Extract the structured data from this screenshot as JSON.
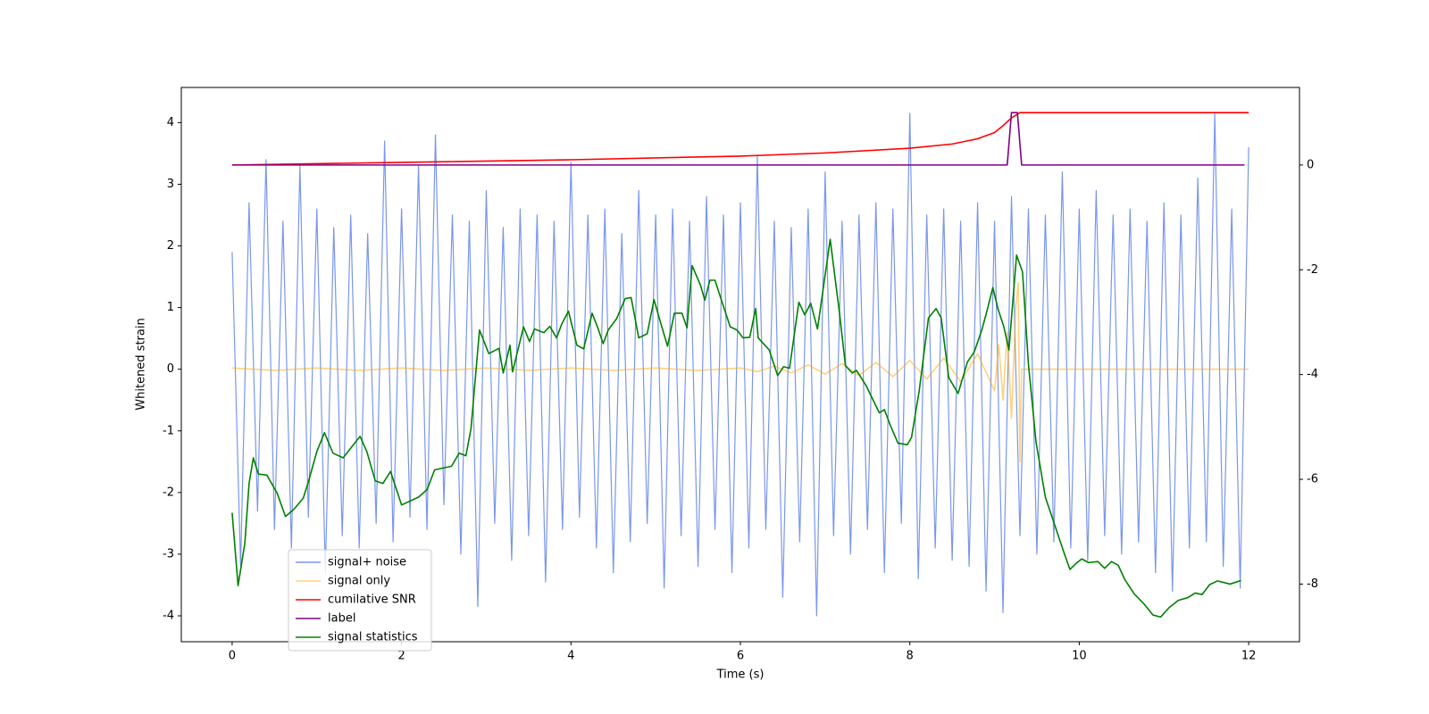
{
  "chart_data": {
    "type": "line",
    "xlabel": "Time (s)",
    "ylabel": "Whitened strain",
    "xlim": [
      -0.6,
      12.6
    ],
    "xticks": [
      0,
      2,
      4,
      6,
      8,
      10,
      12
    ],
    "ylim": [
      -4.42,
      4.57
    ],
    "yticks": [
      -4,
      -3,
      -2,
      -1,
      0,
      1,
      2,
      3,
      4
    ],
    "y2lim": [
      -9.1,
      1.48
    ],
    "y2ticks": [
      -8,
      -6,
      -4,
      -2,
      0
    ],
    "legend_loc": "lower left",
    "series": [
      {
        "name": "signal+ noise",
        "color": "#4169e1",
        "alpha": 0.7,
        "axis": "y",
        "x": [
          0,
          0.1,
          0.2,
          0.3,
          0.4,
          0.5,
          0.6,
          0.7,
          0.8,
          0.9,
          1,
          1.1,
          1.2,
          1.3,
          1.4,
          1.5,
          1.6,
          1.7,
          1.8,
          1.9,
          2,
          2.1,
          2.2,
          2.3,
          2.4,
          2.5,
          2.6,
          2.7,
          2.8,
          2.9,
          3,
          3.1,
          3.2,
          3.3,
          3.4,
          3.5,
          3.6,
          3.7,
          3.8,
          3.9,
          4,
          4.1,
          4.2,
          4.3,
          4.4,
          4.5,
          4.6,
          4.7,
          4.8,
          4.9,
          5,
          5.1,
          5.2,
          5.3,
          5.4,
          5.5,
          5.6,
          5.7,
          5.8,
          5.9,
          6,
          6.1,
          6.2,
          6.3,
          6.4,
          6.5,
          6.6,
          6.7,
          6.8,
          6.9,
          7,
          7.1,
          7.2,
          7.3,
          7.4,
          7.5,
          7.6,
          7.7,
          7.8,
          7.9,
          8,
          8.1,
          8.2,
          8.3,
          8.4,
          8.5,
          8.6,
          8.7,
          8.8,
          8.9,
          9,
          9.1,
          9.2,
          9.3,
          9.4,
          9.5,
          9.6,
          9.7,
          9.8,
          9.9,
          10,
          10.1,
          10.2,
          10.3,
          10.4,
          10.5,
          10.6,
          10.7,
          10.8,
          10.9,
          11,
          11.1,
          11.2,
          11.3,
          11.4,
          11.5,
          11.6,
          11.7,
          11.8,
          11.9,
          12
        ],
        "values": [
          1.9,
          -3.2,
          2.7,
          -2.3,
          3.4,
          -2.6,
          2.4,
          -2.9,
          3.3,
          -2.4,
          2.6,
          -3.3,
          2.3,
          -2.7,
          2.5,
          -2.9,
          2.2,
          -2.5,
          3.7,
          -2.8,
          2.6,
          -2.4,
          3.3,
          -2.6,
          3.8,
          -2.2,
          2.5,
          -3.0,
          2.4,
          -3.85,
          2.9,
          -2.5,
          2.3,
          -3.1,
          2.6,
          -2.7,
          2.5,
          -3.45,
          2.4,
          -2.6,
          3.35,
          -2.4,
          2.5,
          -2.9,
          2.6,
          -3.3,
          2.2,
          -2.8,
          2.9,
          -2.5,
          2.5,
          -3.55,
          2.6,
          -2.7,
          2.4,
          -3.2,
          2.8,
          -2.6,
          2.5,
          -3.3,
          2.7,
          -2.9,
          3.45,
          -2.6,
          2.4,
          -3.7,
          2.3,
          -2.8,
          2.6,
          -4.0,
          3.2,
          -2.7,
          2.4,
          -3.0,
          2.5,
          -2.6,
          2.7,
          -3.3,
          2.6,
          -2.5,
          4.15,
          -3.4,
          2.5,
          -2.9,
          2.6,
          -3.1,
          2.4,
          -3.2,
          2.7,
          -3.6,
          2.4,
          -3.95,
          2.8,
          -2.7,
          2.6,
          -3.0,
          2.5,
          -2.8,
          3.2,
          -2.9,
          2.6,
          -3.1,
          2.9,
          -2.7,
          2.5,
          -3.0,
          2.6,
          -2.8,
          2.4,
          -3.3,
          2.7,
          -3.6,
          2.5,
          -2.9,
          3.1,
          -2.8,
          4.15,
          -3.2,
          2.6,
          -3.55,
          3.6
        ]
      },
      {
        "name": "signal only",
        "color": "#ffa500",
        "alpha": 0.5,
        "axis": "y",
        "x": [
          0,
          0.5,
          1,
          1.5,
          2,
          2.5,
          3,
          3.5,
          4,
          4.5,
          5,
          5.5,
          6,
          6.2,
          6.4,
          6.6,
          6.8,
          7,
          7.2,
          7.4,
          7.6,
          7.8,
          8,
          8.2,
          8.4,
          8.6,
          8.8,
          9,
          9.05,
          9.1,
          9.15,
          9.2,
          9.25,
          9.28,
          9.3,
          9.32,
          12
        ],
        "values": [
          0.02,
          -0.02,
          0.02,
          -0.02,
          0.02,
          -0.02,
          0.02,
          -0.02,
          0.02,
          -0.02,
          0.02,
          -0.02,
          0.02,
          -0.04,
          0.05,
          -0.06,
          0.07,
          -0.08,
          0.09,
          -0.1,
          0.11,
          -0.12,
          0.14,
          -0.16,
          0.18,
          -0.2,
          0.25,
          -0.35,
          0.4,
          -0.5,
          0.6,
          -0.8,
          1.0,
          1.4,
          -1.5,
          0,
          0
        ]
      },
      {
        "name": "cumilative SNR",
        "color": "#ff0000",
        "alpha": 1,
        "axis": "y2",
        "x": [
          0,
          2,
          4,
          6,
          7,
          8,
          8.5,
          8.8,
          9,
          9.1,
          9.2,
          9.3,
          12
        ],
        "values": [
          0,
          0.05,
          0.1,
          0.17,
          0.23,
          0.32,
          0.4,
          0.5,
          0.62,
          0.75,
          0.9,
          1,
          1
        ]
      },
      {
        "name": "label",
        "color": "#800080",
        "alpha": 1,
        "axis": "y2",
        "x": [
          0,
          9.15,
          9.2,
          9.27,
          9.32,
          11.95
        ],
        "values": [
          0,
          0,
          1,
          1,
          0,
          0
        ]
      },
      {
        "name": "signal statistics",
        "color": "#008000",
        "alpha": 1,
        "axis": "y2",
        "x": [
          0,
          0.07,
          0.15,
          0.2,
          0.25,
          0.31,
          0.41,
          0.53,
          0.63,
          0.73,
          0.84,
          0.9,
          1,
          1.09,
          1.19,
          1.31,
          1.51,
          1.59,
          1.69,
          1.78,
          1.87,
          2,
          2.2,
          2.3,
          2.39,
          2.59,
          2.68,
          2.76,
          2.82,
          2.92,
          3.03,
          3.15,
          3.2,
          3.28,
          3.31,
          3.44,
          3.51,
          3.57,
          3.68,
          3.75,
          3.83,
          3.89,
          3.97,
          4.07,
          4.15,
          4.25,
          4.31,
          4.38,
          4.44,
          4.54,
          4.64,
          4.71,
          4.8,
          4.9,
          4.98,
          5.06,
          5.14,
          5.22,
          5.31,
          5.37,
          5.43,
          5.53,
          5.58,
          5.64,
          5.7,
          5.79,
          5.88,
          5.96,
          6.03,
          6.11,
          6.18,
          6.21,
          6.34,
          6.44,
          6.51,
          6.58,
          6.69,
          6.76,
          6.83,
          6.91,
          7.06,
          7.17,
          7.24,
          7.32,
          7.37,
          7.48,
          7.64,
          7.7,
          7.77,
          7.86,
          7.97,
          8.02,
          8.11,
          8.22,
          8.31,
          8.37,
          8.46,
          8.57,
          8.68,
          8.76,
          8.85,
          8.91,
          8.98,
          9.04,
          9.11,
          9.17,
          9.26,
          9.33,
          9.4,
          9.49,
          9.6,
          9.71,
          9.82,
          9.89,
          9.96,
          10.03,
          10.11,
          10.22,
          10.3,
          10.38,
          10.46,
          10.54,
          10.65,
          10.76,
          10.87,
          10.96,
          11.06,
          11.17,
          11.28,
          11.37,
          11.45,
          11.54,
          11.63,
          11.78,
          11.91
        ],
        "values": [
          -6.64,
          -8.03,
          -7.22,
          -6.08,
          -5.59,
          -5.9,
          -5.92,
          -6.26,
          -6.71,
          -6.57,
          -6.36,
          -6.05,
          -5.47,
          -5.11,
          -5.5,
          -5.59,
          -5.18,
          -5.47,
          -6.03,
          -6.08,
          -5.85,
          -6.49,
          -6.34,
          -6.2,
          -5.82,
          -5.75,
          -5.5,
          -5.55,
          -5.03,
          -3.15,
          -3.6,
          -3.5,
          -3.97,
          -3.44,
          -3.95,
          -3.09,
          -3.37,
          -3.13,
          -3.2,
          -3.08,
          -3.3,
          -3.04,
          -2.79,
          -3.44,
          -3.51,
          -2.83,
          -3.08,
          -3.41,
          -3.15,
          -2.93,
          -2.55,
          -2.53,
          -3.3,
          -3.22,
          -2.57,
          -3.02,
          -3.46,
          -2.83,
          -2.83,
          -3.11,
          -1.92,
          -2.3,
          -2.58,
          -2.2,
          -2.2,
          -2.65,
          -3.09,
          -3.15,
          -3.3,
          -3.29,
          -2.74,
          -3.3,
          -3.53,
          -4.02,
          -3.85,
          -3.88,
          -2.62,
          -2.86,
          -2.64,
          -3.13,
          -1.42,
          -2.83,
          -3.83,
          -3.97,
          -3.92,
          -4.2,
          -4.73,
          -4.67,
          -4.97,
          -5.31,
          -5.34,
          -5.2,
          -4.32,
          -2.92,
          -2.74,
          -2.92,
          -4.06,
          -4.36,
          -3.76,
          -3.57,
          -3.15,
          -2.79,
          -2.34,
          -2.74,
          -3.09,
          -3.53,
          -1.72,
          -2.04,
          -3.8,
          -5.29,
          -6.34,
          -6.87,
          -7.4,
          -7.72,
          -7.61,
          -7.52,
          -7.59,
          -7.57,
          -7.7,
          -7.57,
          -7.64,
          -7.92,
          -8.19,
          -8.37,
          -8.59,
          -8.63,
          -8.45,
          -8.31,
          -8.26,
          -8.17,
          -8.2,
          -8.01,
          -7.94,
          -8.0,
          -7.93
        ]
      }
    ]
  }
}
